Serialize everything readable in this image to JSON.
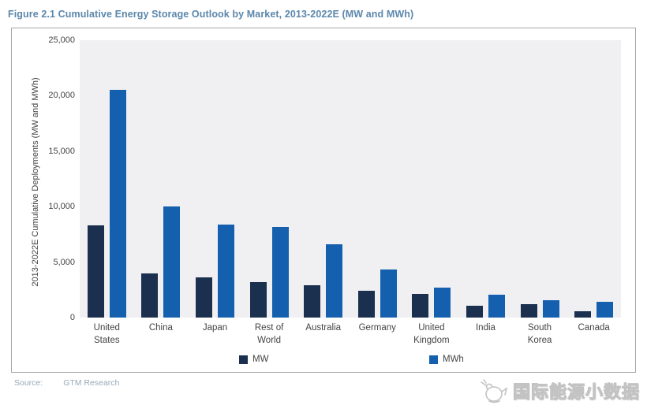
{
  "figure": {
    "title": "Figure 2.1  Cumulative Energy Storage Outlook by Market, 2013-2022E (MW and MWh)"
  },
  "chart_data": {
    "type": "bar",
    "title": "Cumulative Energy Storage Outlook by Market, 2013-2022E (MW and MWh)",
    "categories": [
      "United\nStates",
      "China",
      "Japan",
      "Rest of\nWorld",
      "Australia",
      "Germany",
      "United\nKingdom",
      "India",
      "South\nKorea",
      "Canada"
    ],
    "series": [
      {
        "name": "MW",
        "color": "#1b2f4e",
        "values": [
          8300,
          4000,
          3650,
          3200,
          2900,
          2450,
          2100,
          1050,
          1200,
          600
        ]
      },
      {
        "name": "MWh",
        "color": "#1560ae",
        "values": [
          20500,
          10000,
          8350,
          8200,
          6600,
          4300,
          2700,
          2050,
          1550,
          1400
        ]
      }
    ],
    "xlabel": "",
    "ylabel": "2013-2022E Cumulative Deployments (MW and MWh)",
    "ylim": [
      0,
      25000
    ],
    "ytick_step": 5000,
    "ytick_labels": [
      "0",
      "5,000",
      "10,000",
      "15,000",
      "20,000",
      "25,000"
    ],
    "grid": false,
    "legend_position": "bottom-inside",
    "plot_bg": "#f0f0f2"
  },
  "footer": {
    "source_label": "Source:",
    "source_value": "GTM Research",
    "watermark": "国际能源小数据"
  },
  "colors": {
    "title": "#5b87ab",
    "mw_bar": "#1b2f4e",
    "mwh_bar": "#1560ae",
    "frame_border": "#a6a6a6",
    "axis_text": "#444444",
    "source_text": "#97a9ba"
  }
}
